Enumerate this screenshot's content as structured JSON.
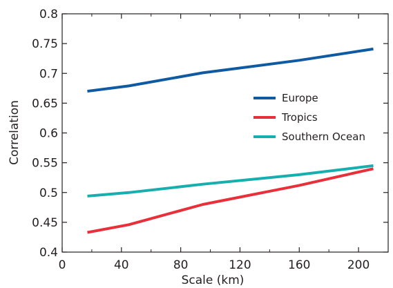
{
  "chart_data": {
    "type": "line",
    "title": "",
    "xlabel": "Scale (km)",
    "ylabel": "Correlation",
    "xlim": [
      0,
      220
    ],
    "ylim": [
      0.4,
      0.8
    ],
    "x_ticks": [
      0,
      40,
      80,
      120,
      160,
      200
    ],
    "y_ticks": [
      0.4,
      0.45,
      0.5,
      0.55,
      0.6,
      0.65,
      0.7,
      0.75,
      0.8
    ],
    "x_tick_labels": [
      "0",
      "40",
      "80",
      "120",
      "160",
      "200"
    ],
    "y_tick_labels": [
      "0.4",
      "0.45",
      "0.5",
      "0.55",
      "0.6",
      "0.65",
      "0.7",
      "0.75",
      "0.8"
    ],
    "grid": false,
    "legend": "right",
    "series": [
      {
        "name": "Europe",
        "color": "#0f5aa0",
        "x": [
          17,
          45,
          95,
          160,
          210
        ],
        "y": [
          0.67,
          0.679,
          0.701,
          0.722,
          0.741
        ]
      },
      {
        "name": "Tropics",
        "color": "#e8303a",
        "x": [
          17,
          45,
          95,
          160,
          210
        ],
        "y": [
          0.433,
          0.446,
          0.48,
          0.512,
          0.54
        ]
      },
      {
        "name": "Southern Ocean",
        "color": "#17aeae",
        "x": [
          17,
          45,
          95,
          160,
          210
        ],
        "y": [
          0.494,
          0.5,
          0.514,
          0.53,
          0.545
        ]
      }
    ]
  }
}
